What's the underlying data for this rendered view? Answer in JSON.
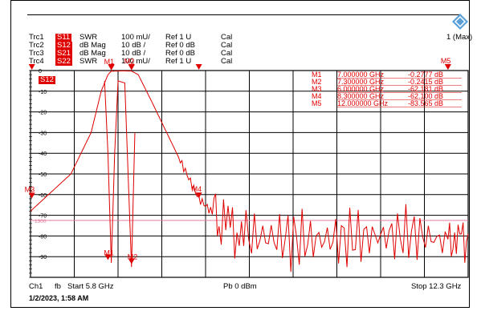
{
  "traces": [
    {
      "name": "Trc1",
      "param": "S11",
      "format": "SWR",
      "scale": "100 mU/",
      "ref": "Ref 1 U",
      "cal": "Cal"
    },
    {
      "name": "Trc2",
      "param": "S12",
      "format": "dB Mag",
      "scale": "10 dB /",
      "ref": "Ref 0 dB",
      "cal": "Cal"
    },
    {
      "name": "Trc3",
      "param": "S21",
      "format": "dB Mag",
      "scale": "10 dB /",
      "ref": "Ref 0 dB",
      "cal": "Cal"
    },
    {
      "name": "Trc4",
      "param": "S22",
      "format": "SWR",
      "scale": "100 mU/",
      "ref": "Ref 1 U",
      "cal": "Cal"
    }
  ],
  "channel_label": "1 (Max)",
  "active_trace_tag": "S12",
  "markers": [
    {
      "name": "M1",
      "freq": "7.000000 GHz",
      "value": "-0.2777 dB"
    },
    {
      "name": "M2",
      "freq": "7.300000 GHz",
      "value": "-0.2415 dB"
    },
    {
      "name": "M3",
      "freq": "6.000000 GHz",
      "value": "-62.181 dB"
    },
    {
      "name": "M4",
      "freq": "8.300000 GHz",
      "value": "-62.100 dB"
    },
    {
      "name": "M5",
      "freq": "12.000000 GHz",
      "value": "-83.565 dB"
    }
  ],
  "y_ticks": [
    "0",
    "-10",
    "-20",
    "-30",
    "-40",
    "-50",
    "-60",
    "-70",
    "-80",
    "-90"
  ],
  "limit_line_label": "1300",
  "footer": {
    "channel": "Ch1",
    "type": "fb",
    "start": "Start  5.8 GHz",
    "power": "Pb  0 dBm",
    "stop": "Stop  12.3 GHz"
  },
  "timestamp": "1/2/2023, 1:58 AM",
  "colors": {
    "trace": "#e00000",
    "grid": "#000000",
    "limit": "#e07aa0",
    "text_marker": "#e00000"
  },
  "chart_data": {
    "type": "line",
    "xlabel": "",
    "ylabel": "",
    "xlim": [
      5.8,
      12.3
    ],
    "ylim": [
      -100,
      0
    ],
    "series": [
      {
        "x": [
          5.8,
          6.0,
          6.4,
          6.7,
          6.85,
          6.95,
          7.0,
          7.15,
          7.3,
          7.4,
          7.6,
          8.0,
          8.3,
          8.6,
          9.0,
          9.5,
          10,
          10.5,
          11,
          11.5,
          12,
          12.3
        ],
        "values": [
          -68,
          -62,
          -50,
          -30,
          -10,
          -2,
          -0.3,
          -0.2,
          -0.24,
          -2,
          -15,
          -42,
          -62,
          -72,
          -80,
          -81,
          -82,
          -81,
          -80,
          -79,
          -83,
          -79
        ]
      },
      {
        "x": [
          6.9,
          6.95,
          7.0,
          7.05,
          7.1,
          7.2,
          7.3,
          7.35
        ],
        "values": [
          -5,
          -40,
          -93,
          -40,
          -5,
          -6,
          -95,
          -30
        ]
      }
    ]
  }
}
